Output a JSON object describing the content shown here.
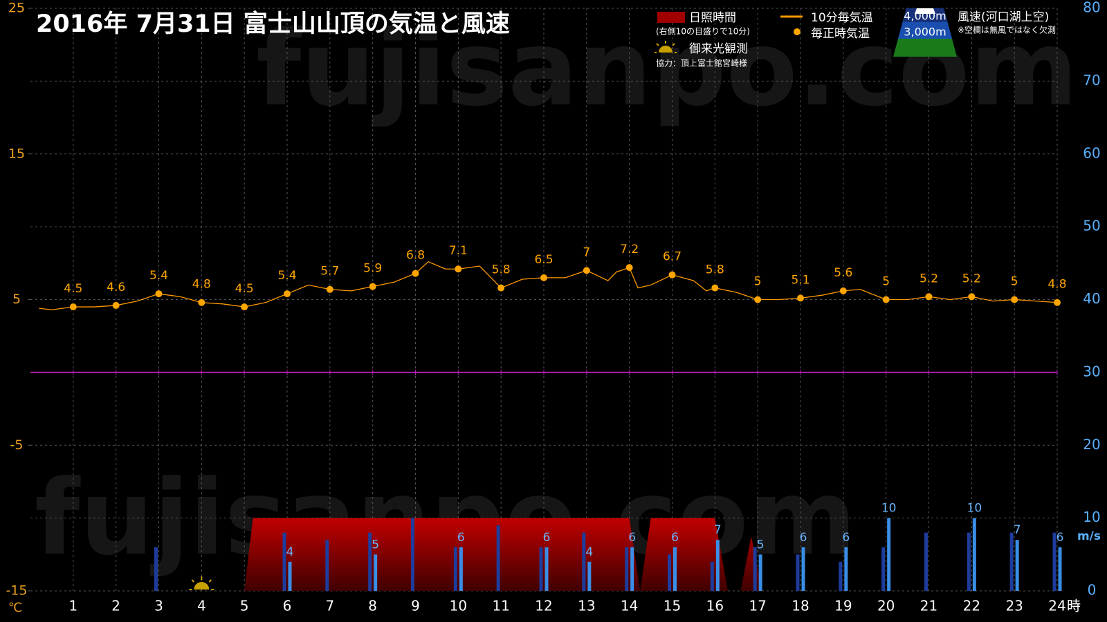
{
  "chart_data": {
    "type": "combo",
    "title": "2016年  7月31日   富士山山頂の気温と風速",
    "watermark": "fujisanpo.com",
    "y_unit": "℃",
    "y2_unit": "m/s",
    "x_unit": "時",
    "xlim": [
      0,
      24
    ],
    "xticks": [
      1,
      2,
      3,
      4,
      5,
      6,
      7,
      8,
      9,
      10,
      11,
      12,
      13,
      14,
      15,
      16,
      17,
      18,
      19,
      20,
      21,
      22,
      23,
      24
    ],
    "ylim": [
      -15,
      25
    ],
    "yticks": [
      -15,
      -5,
      5,
      15,
      25
    ],
    "y_color": "#f0a020",
    "y2lim": [
      0,
      80
    ],
    "y2ticks": [
      0,
      10,
      20,
      30,
      40,
      50,
      60,
      70,
      80
    ],
    "y2_color": "#5ab0ff",
    "grid": true,
    "reference_line": {
      "value": 0,
      "color": "#b020b0"
    },
    "sunshine_note": "(右側10の目盛りで10分)",
    "goraiko": {
      "label": "御来光観測",
      "x": 4,
      "color": "#c8a000"
    },
    "credit": "協力：頂上富士館宮崎様",
    "wind_legend_title": "風速(河口湖上空)",
    "wind_note": "※空欄は無風ではなく欠測",
    "series": [
      {
        "name": "10分毎気温",
        "type": "line",
        "color": "#ff9900",
        "x": [
          0.2,
          0.5,
          1,
          1.5,
          2,
          2.5,
          3,
          3.5,
          4,
          4.5,
          5,
          5.5,
          6,
          6.5,
          7,
          7.5,
          8,
          8.5,
          9,
          9.3,
          9.7,
          10,
          10.5,
          11,
          11.5,
          12,
          12.5,
          13,
          13.5,
          13.7,
          14,
          14.2,
          14.5,
          15,
          15.5,
          15.8,
          16,
          16.5,
          17,
          17.5,
          18,
          18.5,
          19,
          19.4,
          20,
          20.5,
          21,
          21.5,
          22,
          22.5,
          23,
          23.5,
          24
        ],
        "values": [
          4.4,
          4.3,
          4.5,
          4.5,
          4.6,
          4.9,
          5.4,
          5.2,
          4.8,
          4.7,
          4.5,
          4.8,
          5.4,
          6.0,
          5.7,
          5.6,
          5.9,
          6.2,
          6.8,
          7.6,
          7.1,
          7.1,
          7.3,
          5.8,
          6.4,
          6.5,
          6.5,
          7,
          6.3,
          6.9,
          7.2,
          5.8,
          6,
          6.7,
          6.3,
          5.6,
          5.8,
          5.5,
          5,
          5,
          5.1,
          5.3,
          5.6,
          5.7,
          5,
          5,
          5.2,
          5,
          5.2,
          4.9,
          5,
          4.9,
          4.8
        ]
      },
      {
        "name": "毎正時気温",
        "type": "scatter",
        "color": "#ffa500",
        "x": [
          1,
          2,
          3,
          4,
          5,
          6,
          7,
          8,
          9,
          10,
          11,
          12,
          13,
          14,
          15,
          16,
          17,
          18,
          19,
          20,
          21,
          22,
          23,
          24
        ],
        "values": [
          4.5,
          4.6,
          5.4,
          4.8,
          4.5,
          5.4,
          5.7,
          5.9,
          6.8,
          7.1,
          5.8,
          6.5,
          7,
          7.2,
          6.7,
          5.8,
          5,
          5.1,
          5.6,
          5,
          5.2,
          5.2,
          5,
          4.8
        ]
      },
      {
        "name": "日照時間",
        "type": "area",
        "axis": "y2",
        "color": "#a00000",
        "x": [
          5,
          5.2,
          14,
          14.25,
          14.5,
          16,
          16.3,
          16.6,
          16.85,
          17.1
        ],
        "values": [
          0,
          10,
          10,
          0,
          10,
          10,
          0,
          0,
          7.5,
          0
        ]
      },
      {
        "name": "4,000m",
        "type": "bar",
        "axis": "y2",
        "color": "#1e3c9c",
        "offset": -4,
        "x": [
          1,
          2,
          3,
          4,
          5,
          6,
          7,
          8,
          9,
          10,
          11,
          12,
          13,
          14,
          15,
          16,
          17,
          18,
          19,
          20,
          21,
          22,
          23,
          24
        ],
        "values": [
          null,
          null,
          6,
          null,
          null,
          8,
          7,
          8,
          10,
          6,
          9,
          6,
          8,
          6,
          5,
          4,
          6,
          5,
          4,
          6,
          8,
          8,
          8,
          8
        ]
      },
      {
        "name": "3,000m",
        "type": "bar",
        "axis": "y2",
        "color": "#3a8ee6",
        "offset": 4,
        "labels": true,
        "x": [
          1,
          2,
          3,
          4,
          5,
          6,
          7,
          8,
          9,
          10,
          11,
          12,
          13,
          14,
          15,
          16,
          17,
          18,
          19,
          20,
          21,
          22,
          23,
          24
        ],
        "values": [
          null,
          null,
          null,
          null,
          null,
          4,
          null,
          5,
          null,
          6,
          null,
          6,
          4,
          6,
          6,
          7,
          5,
          6,
          6,
          10,
          null,
          10,
          7,
          6
        ]
      }
    ]
  }
}
